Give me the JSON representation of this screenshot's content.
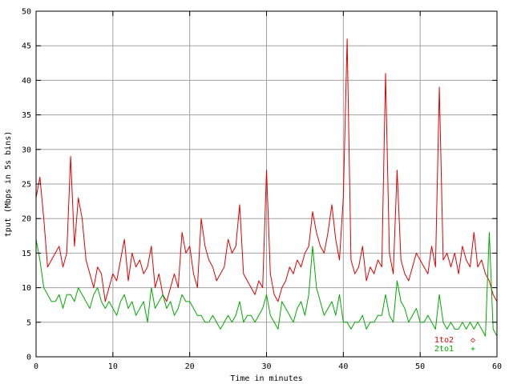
{
  "chart_data": {
    "type": "line",
    "title": "",
    "xlabel": "Time in minutes",
    "ylabel": "tput (Mbps in 5s bins)",
    "xlim": [
      0,
      60
    ],
    "ylim": [
      0,
      50
    ],
    "x_ticks": [
      0,
      10,
      20,
      30,
      40,
      50,
      60
    ],
    "y_ticks": [
      0,
      5,
      10,
      15,
      20,
      25,
      30,
      35,
      40,
      45,
      50
    ],
    "x_tick_labels": [
      "0",
      "10",
      "20",
      "30",
      "40",
      "50",
      "60"
    ],
    "y_tick_labels": [
      "0",
      "5",
      "10",
      "15",
      "20",
      "25",
      "30",
      "35",
      "40",
      "45",
      "50"
    ],
    "grid": true,
    "legend_position": "bottom-right",
    "series": [
      {
        "name": "1to2",
        "marker": "◇",
        "color": "#e00000",
        "x": [
          0,
          0.5,
          1,
          1.5,
          2,
          2.5,
          3,
          3.5,
          4,
          4.5,
          5,
          5.5,
          6,
          6.5,
          7,
          7.5,
          8,
          8.5,
          9,
          9.5,
          10,
          10.5,
          11,
          11.5,
          12,
          12.5,
          13,
          13.5,
          14,
          14.5,
          15,
          15.5,
          16,
          16.5,
          17,
          17.5,
          18,
          18.5,
          19,
          19.5,
          20,
          20.5,
          21,
          21.5,
          22,
          22.5,
          23,
          23.5,
          24,
          24.5,
          25,
          25.5,
          26,
          26.5,
          27,
          27.5,
          28,
          28.5,
          29,
          29.5,
          30,
          30.5,
          31,
          31.5,
          32,
          32.5,
          33,
          33.5,
          34,
          34.5,
          35,
          35.5,
          36,
          36.5,
          37,
          37.5,
          38,
          38.5,
          39,
          39.5,
          40,
          40.5,
          41,
          41.5,
          42,
          42.5,
          43,
          43.5,
          44,
          44.5,
          45,
          45.5,
          46,
          46.5,
          47,
          47.5,
          48,
          48.5,
          49,
          49.5,
          50,
          50.5,
          51,
          51.5,
          52,
          52.5,
          53,
          53.5,
          54,
          54.5,
          55,
          55.5,
          56,
          56.5,
          57,
          57.5,
          58,
          58.5,
          59,
          59.5,
          60
        ],
        "y": [
          23,
          26,
          20,
          13,
          14,
          15,
          16,
          13,
          15,
          29,
          16,
          23,
          20,
          14,
          12,
          10,
          13,
          12,
          8,
          10,
          12,
          11,
          14,
          17,
          11,
          15,
          13,
          14,
          12,
          13,
          16,
          10,
          12,
          9,
          8,
          10,
          12,
          10,
          18,
          15,
          16,
          12,
          10,
          20,
          16,
          14,
          13,
          11,
          12,
          13,
          17,
          15,
          16,
          22,
          12,
          11,
          10,
          9,
          11,
          10,
          27,
          12,
          9,
          8,
          10,
          11,
          13,
          12,
          14,
          13,
          15,
          16,
          21,
          18,
          16,
          15,
          18,
          22,
          17,
          14,
          23,
          46,
          14,
          12,
          13,
          16,
          11,
          13,
          12,
          14,
          13,
          41,
          15,
          12,
          27,
          14,
          12,
          11,
          13,
          15,
          14,
          13,
          12,
          16,
          13,
          39,
          14,
          15,
          13,
          15,
          12,
          16,
          14,
          13,
          18,
          13,
          14,
          12,
          11,
          9,
          8
        ]
      },
      {
        "name": "2to1",
        "marker": "+",
        "color": "#00aa00",
        "x": [
          0,
          0.5,
          1,
          1.5,
          2,
          2.5,
          3,
          3.5,
          4,
          4.5,
          5,
          5.5,
          6,
          6.5,
          7,
          7.5,
          8,
          8.5,
          9,
          9.5,
          10,
          10.5,
          11,
          11.5,
          12,
          12.5,
          13,
          13.5,
          14,
          14.5,
          15,
          15.5,
          16,
          16.5,
          17,
          17.5,
          18,
          18.5,
          19,
          19.5,
          20,
          20.5,
          21,
          21.5,
          22,
          22.5,
          23,
          23.5,
          24,
          24.5,
          25,
          25.5,
          26,
          26.5,
          27,
          27.5,
          28,
          28.5,
          29,
          29.5,
          30,
          30.5,
          31,
          31.5,
          32,
          32.5,
          33,
          33.5,
          34,
          34.5,
          35,
          35.5,
          36,
          36.5,
          37,
          37.5,
          38,
          38.5,
          39,
          39.5,
          40,
          40.5,
          41,
          41.5,
          42,
          42.5,
          43,
          43.5,
          44,
          44.5,
          45,
          45.5,
          46,
          46.5,
          47,
          47.5,
          48,
          48.5,
          49,
          49.5,
          50,
          50.5,
          51,
          51.5,
          52,
          52.5,
          53,
          53.5,
          54,
          54.5,
          55,
          55.5,
          56,
          56.5,
          57,
          57.5,
          58,
          58.5,
          59,
          59.5,
          60
        ],
        "y": [
          17,
          14,
          10,
          9,
          8,
          8,
          9,
          7,
          9,
          9,
          8,
          10,
          9,
          8,
          7,
          9,
          10,
          8,
          7,
          8,
          7,
          6,
          8,
          9,
          7,
          8,
          6,
          7,
          8,
          5,
          10,
          7,
          8,
          9,
          7,
          8,
          6,
          7,
          9,
          8,
          8,
          7,
          6,
          6,
          5,
          5,
          6,
          5,
          4,
          5,
          6,
          5,
          6,
          8,
          5,
          6,
          6,
          5,
          6,
          7,
          9,
          6,
          5,
          4,
          8,
          7,
          6,
          5,
          7,
          8,
          6,
          9,
          16,
          10,
          8,
          6,
          7,
          8,
          6,
          9,
          5,
          5,
          4,
          5,
          5,
          6,
          4,
          5,
          5,
          6,
          6,
          9,
          6,
          5,
          11,
          8,
          7,
          5,
          6,
          7,
          5,
          5,
          6,
          5,
          4,
          9,
          5,
          4,
          5,
          4,
          4,
          5,
          4,
          5,
          4,
          5,
          4,
          3,
          18,
          4,
          3
        ]
      }
    ]
  }
}
